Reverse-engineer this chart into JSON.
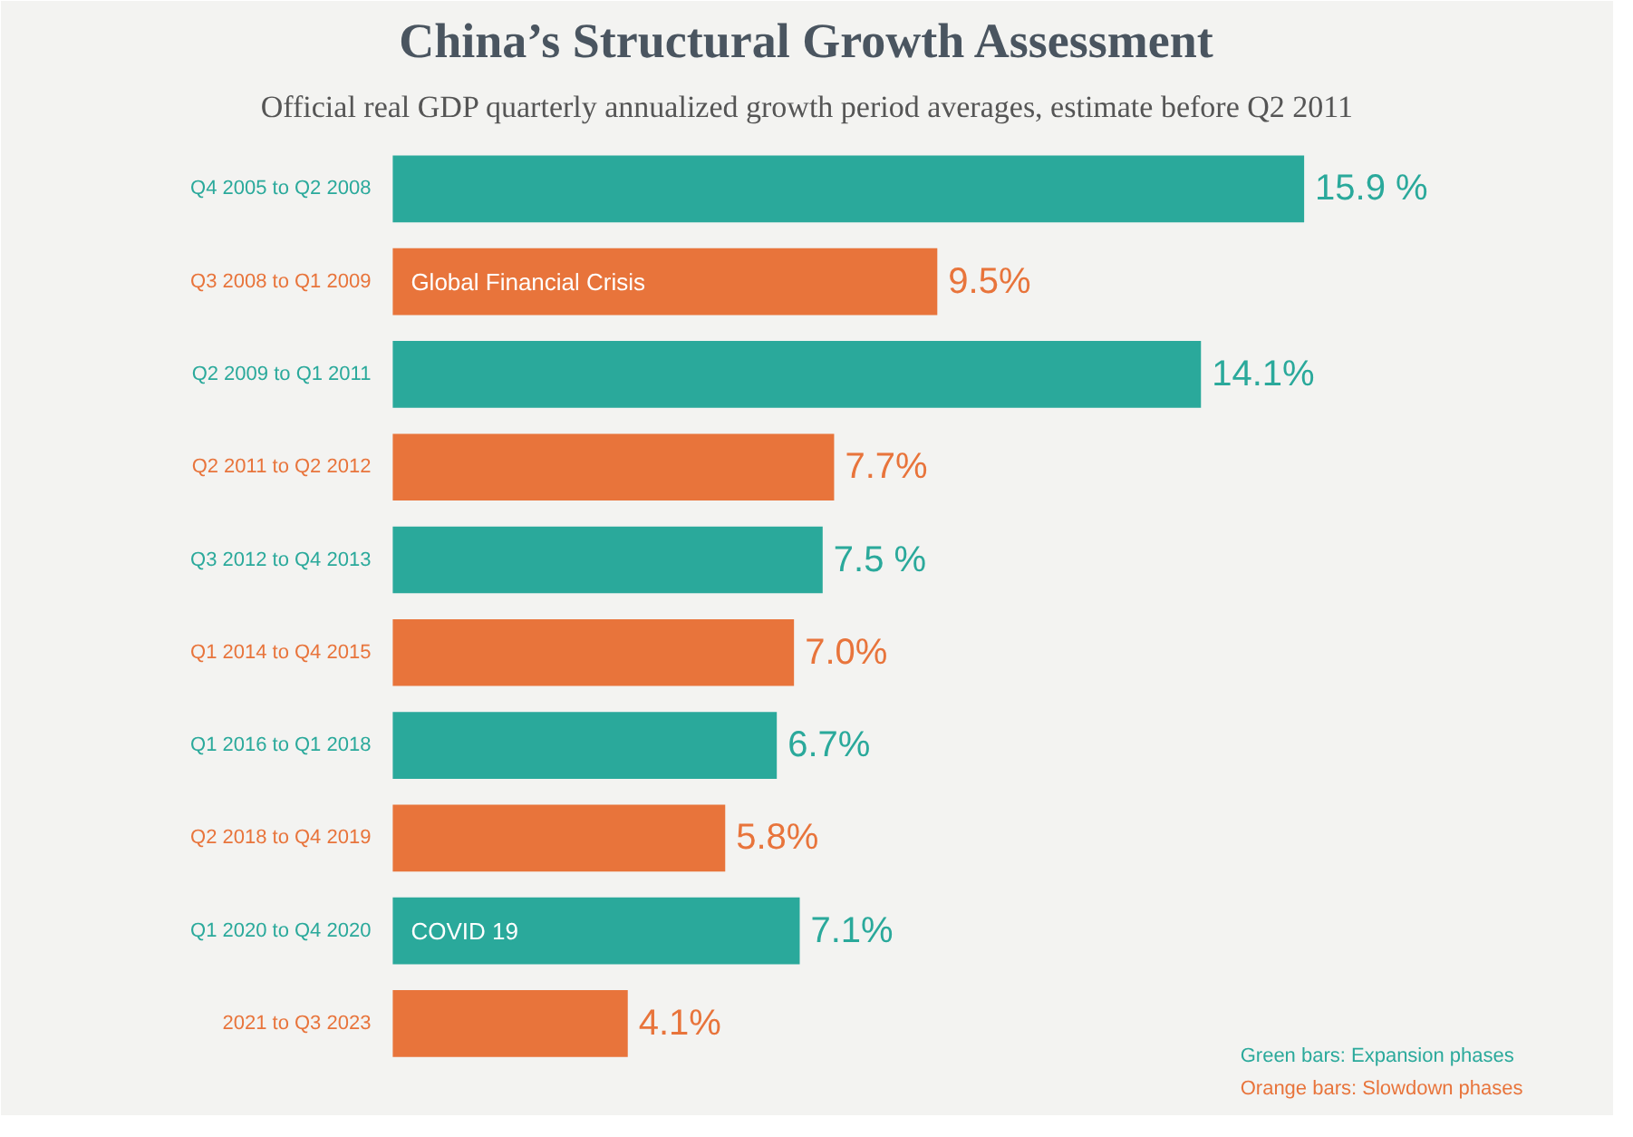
{
  "chart_data": {
    "type": "bar",
    "orientation": "horizontal",
    "title": "China’s Structural Growth Assessment",
    "subtitle": "Official real GDP quarterly annualized growth period averages, estimate before Q2 2011",
    "categories": [
      "Q4 2005 to Q2 2008",
      "Q3 2008 to Q1 2009",
      "Q2 2009 to Q1 2011",
      "Q2 2011 to Q2 2012",
      "Q3 2012 to Q4 2013",
      "Q1 2014 to Q4 2015",
      "Q1 2016 to Q1 2018",
      "Q2 2018 to Q4 2019",
      "Q1 2020 to Q4 2020",
      "2021 to Q3 2023"
    ],
    "values": [
      15.9,
      9.5,
      14.1,
      7.7,
      7.5,
      7.0,
      6.7,
      5.8,
      7.1,
      4.1
    ],
    "value_labels": [
      "15.9 %",
      "9.5%",
      "14.1%",
      "7.7%",
      "7.5 %",
      "7.0%",
      "6.7%",
      "5.8%",
      "7.1%",
      "4.1%"
    ],
    "colors": [
      "#2aa99b",
      "#e8743b",
      "#2aa99b",
      "#e8743b",
      "#2aa99b",
      "#e8743b",
      "#2aa99b",
      "#e8743b",
      "#2aa99b",
      "#e8743b"
    ],
    "annotations": [
      {
        "text": "Global Financial Crisis",
        "x": 0,
        "y": "Q3 2008 to Q1 2009"
      },
      {
        "text": "COVID 19",
        "x": 0,
        "y": "Q1 2020 to Q4 2020"
      },
      "Green bars: Expansion phases",
      "Orange bars: Slowdown phases"
    ],
    "grid": false
  }
}
